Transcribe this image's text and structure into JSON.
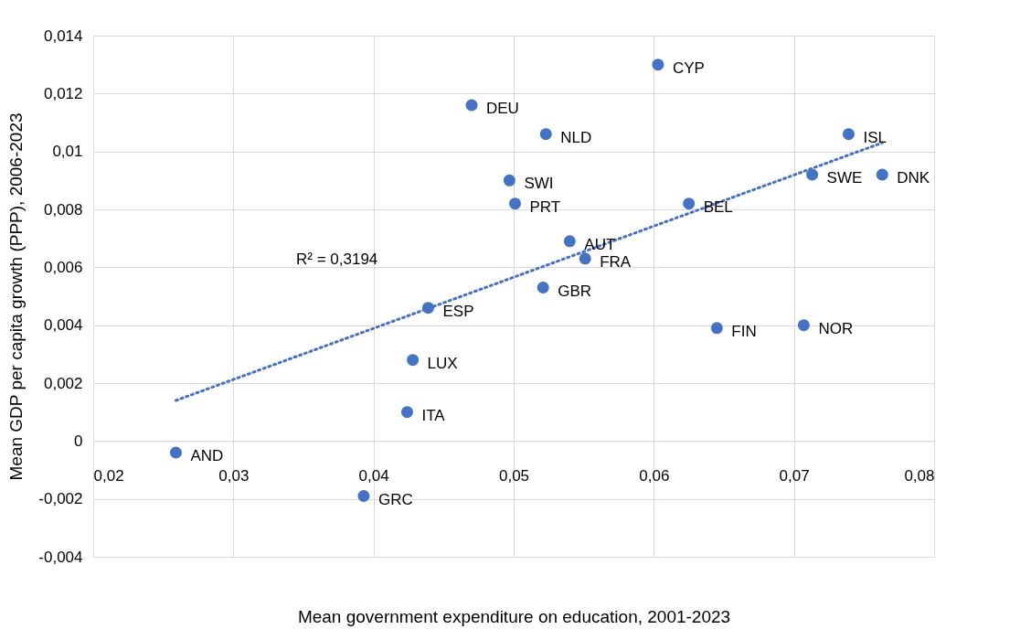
{
  "chart_data": {
    "type": "scatter",
    "xlabel": "Mean government expenditure on education, 2001-2023",
    "ylabel": "Mean GDP per capita growth (PPP), 2006-2023",
    "annotations": [
      "R² = 0,3194"
    ],
    "xlim": [
      0.02,
      0.08
    ],
    "xticks": [
      {
        "value": 0.02,
        "label": "0,02"
      },
      {
        "value": 0.03,
        "label": "0,03"
      },
      {
        "value": 0.04,
        "label": "0,04"
      },
      {
        "value": 0.05,
        "label": "0,05"
      },
      {
        "value": 0.06,
        "label": "0,06"
      },
      {
        "value": 0.07,
        "label": "0,07"
      },
      {
        "value": 0.08,
        "label": "0,08"
      }
    ],
    "ylim": [
      -0.004,
      0.014
    ],
    "yticks": [
      {
        "value": -0.004,
        "label": "-0,004"
      },
      {
        "value": -0.002,
        "label": "-0,002"
      },
      0,
      {
        "value": 0.002,
        "label": "0,002"
      },
      {
        "value": 0.004,
        "label": "0,004"
      },
      {
        "value": 0.006,
        "label": "0,006"
      },
      {
        "value": 0.008,
        "label": "0,008"
      },
      {
        "value": 0.01,
        "label": "0,01"
      },
      {
        "value": 0.012,
        "label": "0,012"
      },
      {
        "value": 0.014,
        "label": "0,014"
      }
    ],
    "grid": true,
    "series": [
      {
        "type": "scatter",
        "color": "#4472c4",
        "marker": "circle",
        "x": [
          0.0603,
          0.047,
          0.0523,
          0.0739,
          0.0713,
          0.0763,
          0.0497,
          0.0501,
          0.0625,
          0.054,
          0.0551,
          0.0521,
          0.0439,
          0.0645,
          0.0707,
          0.0428,
          0.0424,
          0.0259,
          0.0393
        ],
        "values": [
          0.013,
          0.0116,
          0.0106,
          0.0106,
          0.0092,
          0.0092,
          0.009,
          0.0082,
          0.0082,
          0.0069,
          0.0063,
          0.0053,
          0.0046,
          0.0039,
          0.004,
          0.0028,
          0.001,
          -0.0004,
          -0.0019
        ],
        "value_labels": [
          "CYP",
          "DEU",
          "NLD",
          "ISL",
          "SWE",
          "DNK",
          "SWI",
          "PRT",
          "BEL",
          "AUT",
          "FRA",
          "GBR",
          "ESP",
          "FIN",
          "NOR",
          "LUX",
          "ITA",
          "AND",
          "GRC"
        ]
      },
      {
        "type": "line",
        "color": "#4472c4",
        "line_style": "dotted",
        "x": [
          0.0259,
          0.0763
        ],
        "values": [
          0.0014,
          0.0103
        ]
      }
    ]
  }
}
